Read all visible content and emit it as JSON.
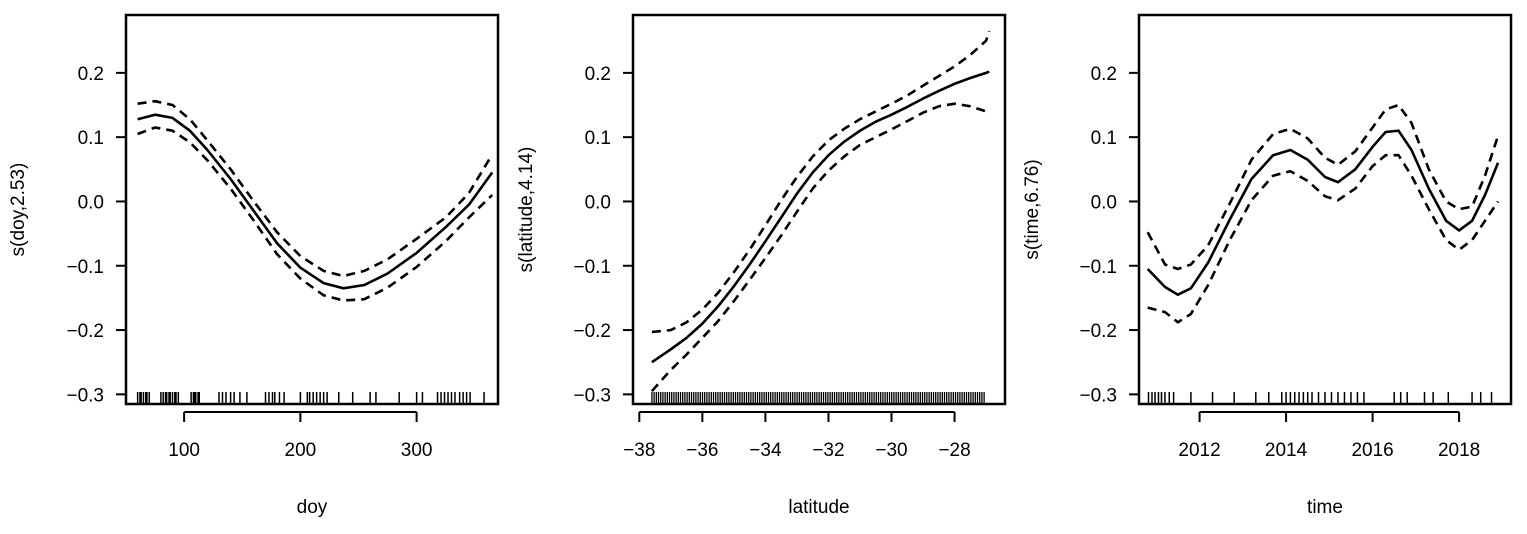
{
  "chart_data": [
    {
      "type": "line",
      "xlabel": "doy",
      "ylabel": "s(doy,2.53)",
      "xlim": [
        50,
        370
      ],
      "ylim": [
        -0.315,
        0.29
      ],
      "xticks": [
        100,
        200,
        300
      ],
      "xtick_labels": [
        "100",
        "200",
        "300"
      ],
      "yticks": [
        -0.3,
        -0.2,
        -0.1,
        0.0,
        0.1,
        0.2
      ],
      "ytick_labels": [
        "−0.3",
        "−0.2",
        "−0.1",
        "0.0",
        "0.1",
        "0.2"
      ],
      "x": [
        60,
        75,
        90,
        105,
        120,
        140,
        160,
        180,
        200,
        220,
        237,
        255,
        275,
        300,
        325,
        345,
        365
      ],
      "series": [
        {
          "style": "solid",
          "values": [
            0.128,
            0.135,
            0.13,
            0.11,
            0.08,
            0.035,
            -0.015,
            -0.065,
            -0.103,
            -0.127,
            -0.135,
            -0.13,
            -0.112,
            -0.08,
            -0.04,
            -0.005,
            0.045
          ]
        },
        {
          "style": "dashed",
          "values": [
            0.152,
            0.156,
            0.15,
            0.128,
            0.095,
            0.05,
            0.0,
            -0.048,
            -0.085,
            -0.108,
            -0.116,
            -0.108,
            -0.09,
            -0.058,
            -0.025,
            0.013,
            0.073
          ]
        },
        {
          "style": "dashed",
          "values": [
            0.105,
            0.115,
            0.11,
            0.092,
            0.064,
            0.02,
            -0.03,
            -0.082,
            -0.12,
            -0.146,
            -0.154,
            -0.152,
            -0.134,
            -0.102,
            -0.062,
            -0.025,
            0.01
          ]
        }
      ],
      "rug": [
        60,
        62,
        63,
        65,
        67,
        68,
        70,
        80,
        82,
        84,
        85,
        87,
        88,
        90,
        92,
        93,
        95,
        106,
        108,
        109,
        110,
        112,
        113,
        130,
        133,
        136,
        140,
        143,
        148,
        154,
        170,
        173,
        176,
        178,
        182,
        186,
        200,
        206,
        208,
        211,
        214,
        217,
        220,
        223,
        233,
        245,
        260,
        265,
        285,
        300,
        305,
        318,
        321,
        324,
        327,
        330,
        333,
        337,
        340,
        343,
        346,
        358
      ]
    },
    {
      "type": "line",
      "xlabel": "latitude",
      "ylabel": "s(latitude,4.14)",
      "xlim": [
        -38.2,
        -26.4
      ],
      "ylim": [
        -0.315,
        0.29
      ],
      "xticks": [
        -38,
        -36,
        -34,
        -32,
        -30,
        -28
      ],
      "xtick_labels": [
        "−38",
        "−36",
        "−34",
        "−32",
        "−30",
        "−28"
      ],
      "yticks": [
        -0.3,
        -0.2,
        -0.1,
        0.0,
        0.1,
        0.2
      ],
      "ytick_labels": [
        "−0.3",
        "−0.2",
        "−0.1",
        "0.0",
        "0.1",
        "0.2"
      ],
      "x": [
        -37.6,
        -37.0,
        -36.5,
        -36.0,
        -35.5,
        -35.0,
        -34.5,
        -34.0,
        -33.5,
        -33.0,
        -32.5,
        -32.0,
        -31.5,
        -31.0,
        -30.5,
        -30.0,
        -29.5,
        -29.0,
        -28.5,
        -28.0,
        -27.5,
        -27.0,
        -26.9
      ],
      "series": [
        {
          "style": "solid",
          "values": [
            -0.25,
            -0.23,
            -0.212,
            -0.19,
            -0.163,
            -0.132,
            -0.098,
            -0.062,
            -0.025,
            0.012,
            0.045,
            0.072,
            0.093,
            0.11,
            0.124,
            0.135,
            0.147,
            0.16,
            0.172,
            0.183,
            0.192,
            0.2,
            0.202
          ]
        },
        {
          "style": "dashed",
          "values": [
            -0.203,
            -0.2,
            -0.188,
            -0.168,
            -0.142,
            -0.11,
            -0.075,
            -0.037,
            0.002,
            0.038,
            0.07,
            0.095,
            0.113,
            0.128,
            0.14,
            0.152,
            0.165,
            0.18,
            0.195,
            0.21,
            0.228,
            0.25,
            0.265
          ]
        },
        {
          "style": "dashed",
          "values": [
            -0.295,
            -0.262,
            -0.238,
            -0.212,
            -0.186,
            -0.155,
            -0.122,
            -0.088,
            -0.053,
            -0.016,
            0.02,
            0.048,
            0.07,
            0.088,
            0.1,
            0.112,
            0.125,
            0.138,
            0.148,
            0.152,
            0.148,
            0.14,
            0.137
          ]
        }
      ],
      "rug": [
        -37.6,
        -27.0
      ]
    },
    {
      "type": "line",
      "xlabel": "time",
      "ylabel": "s(time,6.76)",
      "xlim": [
        2010.6,
        2019.2
      ],
      "ylim": [
        -0.315,
        0.29
      ],
      "xticks": [
        2012,
        2014,
        2016,
        2018
      ],
      "xtick_labels": [
        "2012",
        "2014",
        "2016",
        "2018"
      ],
      "yticks": [
        -0.3,
        -0.2,
        -0.1,
        0.0,
        0.1,
        0.2
      ],
      "ytick_labels": [
        "−0.3",
        "−0.2",
        "−0.1",
        "0.0",
        "0.1",
        "0.2"
      ],
      "x": [
        2010.8,
        2011.2,
        2011.5,
        2011.8,
        2012.2,
        2012.7,
        2013.2,
        2013.7,
        2014.1,
        2014.5,
        2014.9,
        2015.2,
        2015.6,
        2016.0,
        2016.3,
        2016.6,
        2016.9,
        2017.3,
        2017.7,
        2018.0,
        2018.3,
        2018.6,
        2018.9
      ],
      "series": [
        {
          "style": "solid",
          "values": [
            -0.105,
            -0.133,
            -0.145,
            -0.135,
            -0.095,
            -0.028,
            0.035,
            0.072,
            0.08,
            0.065,
            0.038,
            0.03,
            0.05,
            0.085,
            0.108,
            0.11,
            0.08,
            0.02,
            -0.03,
            -0.045,
            -0.03,
            0.01,
            0.06
          ]
        },
        {
          "style": "dashed",
          "values": [
            -0.048,
            -0.098,
            -0.105,
            -0.098,
            -0.068,
            -0.003,
            0.065,
            0.105,
            0.113,
            0.098,
            0.068,
            0.057,
            0.078,
            0.115,
            0.143,
            0.15,
            0.122,
            0.05,
            0.0,
            -0.012,
            -0.008,
            0.04,
            0.102
          ]
        },
        {
          "style": "dashed",
          "values": [
            -0.165,
            -0.172,
            -0.188,
            -0.175,
            -0.13,
            -0.06,
            0.002,
            0.04,
            0.047,
            0.032,
            0.008,
            0.002,
            0.02,
            0.055,
            0.072,
            0.072,
            0.04,
            -0.012,
            -0.06,
            -0.075,
            -0.06,
            -0.03,
            0.0
          ]
        }
      ],
      "rug": [
        2010.82,
        2010.9,
        2010.97,
        2011.05,
        2011.12,
        2011.2,
        2011.3,
        2011.4,
        2011.8,
        2012.3,
        2012.8,
        2013.3,
        2013.6,
        2013.9,
        2014.0,
        2014.1,
        2014.2,
        2014.3,
        2014.4,
        2014.5,
        2014.6,
        2014.75,
        2014.9,
        2015.05,
        2015.2,
        2015.35,
        2015.5,
        2015.65,
        2015.8,
        2016.5,
        2016.65,
        2016.8,
        2017.2,
        2017.4,
        2017.75,
        2018.3,
        2018.5,
        2018.75
      ]
    }
  ]
}
